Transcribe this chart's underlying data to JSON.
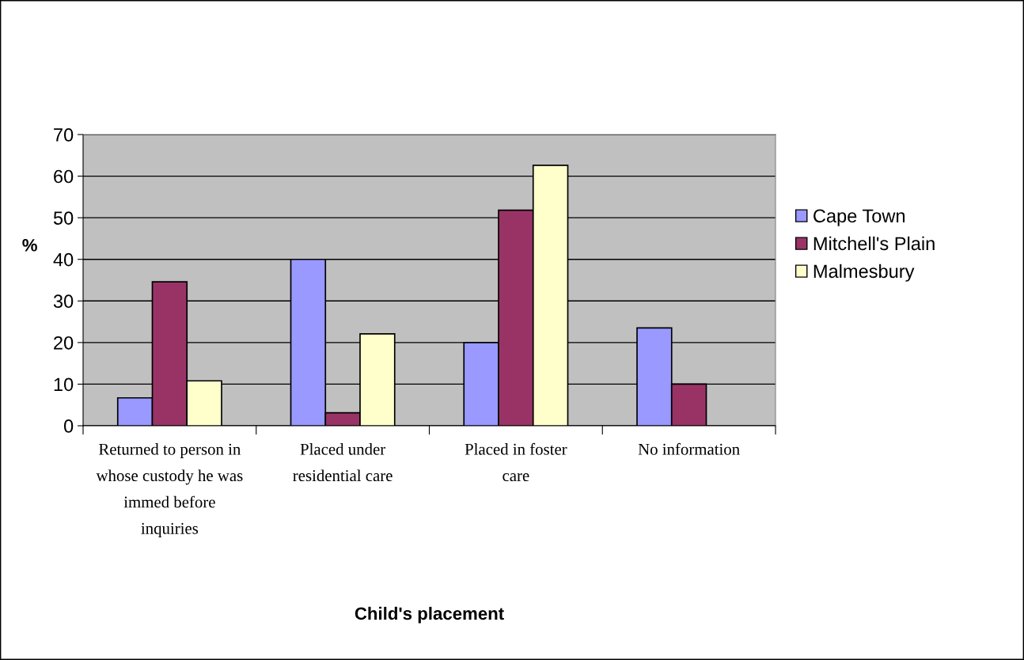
{
  "chart_data": {
    "type": "bar",
    "xlabel": "Child's placement",
    "ylabel": "%",
    "categories": [
      "Returned to person in\nwhose custody he was\nimmed before\ninquiries",
      "Placed under\nresidential care",
      "Placed in foster\ncare",
      "No information"
    ],
    "series": [
      {
        "name": "Cape Town",
        "color": "#9999ff",
        "values": [
          6.7,
          40,
          20,
          23.5
        ]
      },
      {
        "name": "Mitchell's Plain",
        "color": "#993366",
        "values": [
          34.6,
          3.1,
          51.8,
          10
        ]
      },
      {
        "name": "Malmesbury",
        "color": "#ffffcc",
        "values": [
          10.8,
          22.1,
          62.6,
          null
        ]
      }
    ],
    "ylim": [
      0,
      70
    ],
    "yticks": [
      0,
      10,
      20,
      30,
      40,
      50,
      60,
      70
    ],
    "grid": "y",
    "legend": "right"
  }
}
